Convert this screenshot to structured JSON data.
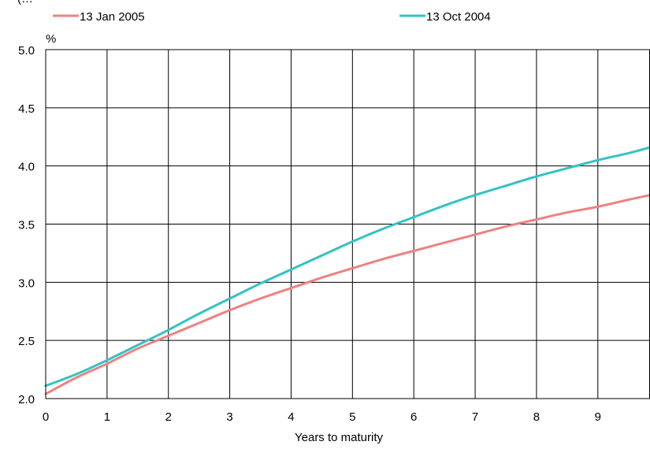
{
  "header": {
    "truncated_note": "(…"
  },
  "chart_data": {
    "type": "line",
    "title": "",
    "xlabel": "Years to maturity",
    "ylabel": "%",
    "xlim": [
      0,
      9.85
    ],
    "ylim": [
      2.0,
      5.0
    ],
    "x_ticks": [
      0,
      1,
      2,
      3,
      4,
      5,
      6,
      7,
      8,
      9
    ],
    "x_tick_labels": [
      "0",
      "1",
      "2",
      "3",
      "4",
      "5",
      "6",
      "7",
      "8",
      "9"
    ],
    "y_ticks": [
      2.0,
      2.5,
      3.0,
      3.5,
      4.0,
      4.5,
      5.0
    ],
    "y_tick_labels": [
      "2.0",
      "2.5",
      "3.0",
      "3.5",
      "4.0",
      "4.5",
      "5.0"
    ],
    "grid": true,
    "legend_position": "top",
    "series": [
      {
        "name": "13 Jan 2005",
        "color": "#f08080",
        "x": [
          0,
          0.5,
          1,
          1.5,
          2,
          2.5,
          3,
          3.5,
          4,
          4.5,
          5,
          5.5,
          6,
          6.5,
          7,
          7.5,
          8,
          8.5,
          9,
          9.5,
          9.85
        ],
        "values": [
          2.04,
          2.18,
          2.3,
          2.43,
          2.54,
          2.65,
          2.76,
          2.86,
          2.95,
          3.04,
          3.12,
          3.2,
          3.27,
          3.34,
          3.41,
          3.48,
          3.54,
          3.6,
          3.65,
          3.71,
          3.75
        ]
      },
      {
        "name": "13 Oct 2004",
        "color": "#33c2c2",
        "x": [
          0,
          0.5,
          1,
          1.5,
          2,
          2.5,
          3,
          3.5,
          4,
          4.5,
          5,
          5.5,
          6,
          6.5,
          7,
          7.5,
          8,
          8.5,
          9,
          9.5,
          9.85
        ],
        "values": [
          2.11,
          2.21,
          2.33,
          2.46,
          2.59,
          2.73,
          2.86,
          2.99,
          3.11,
          3.23,
          3.35,
          3.46,
          3.56,
          3.66,
          3.75,
          3.83,
          3.91,
          3.98,
          4.05,
          4.11,
          4.16
        ]
      }
    ]
  }
}
